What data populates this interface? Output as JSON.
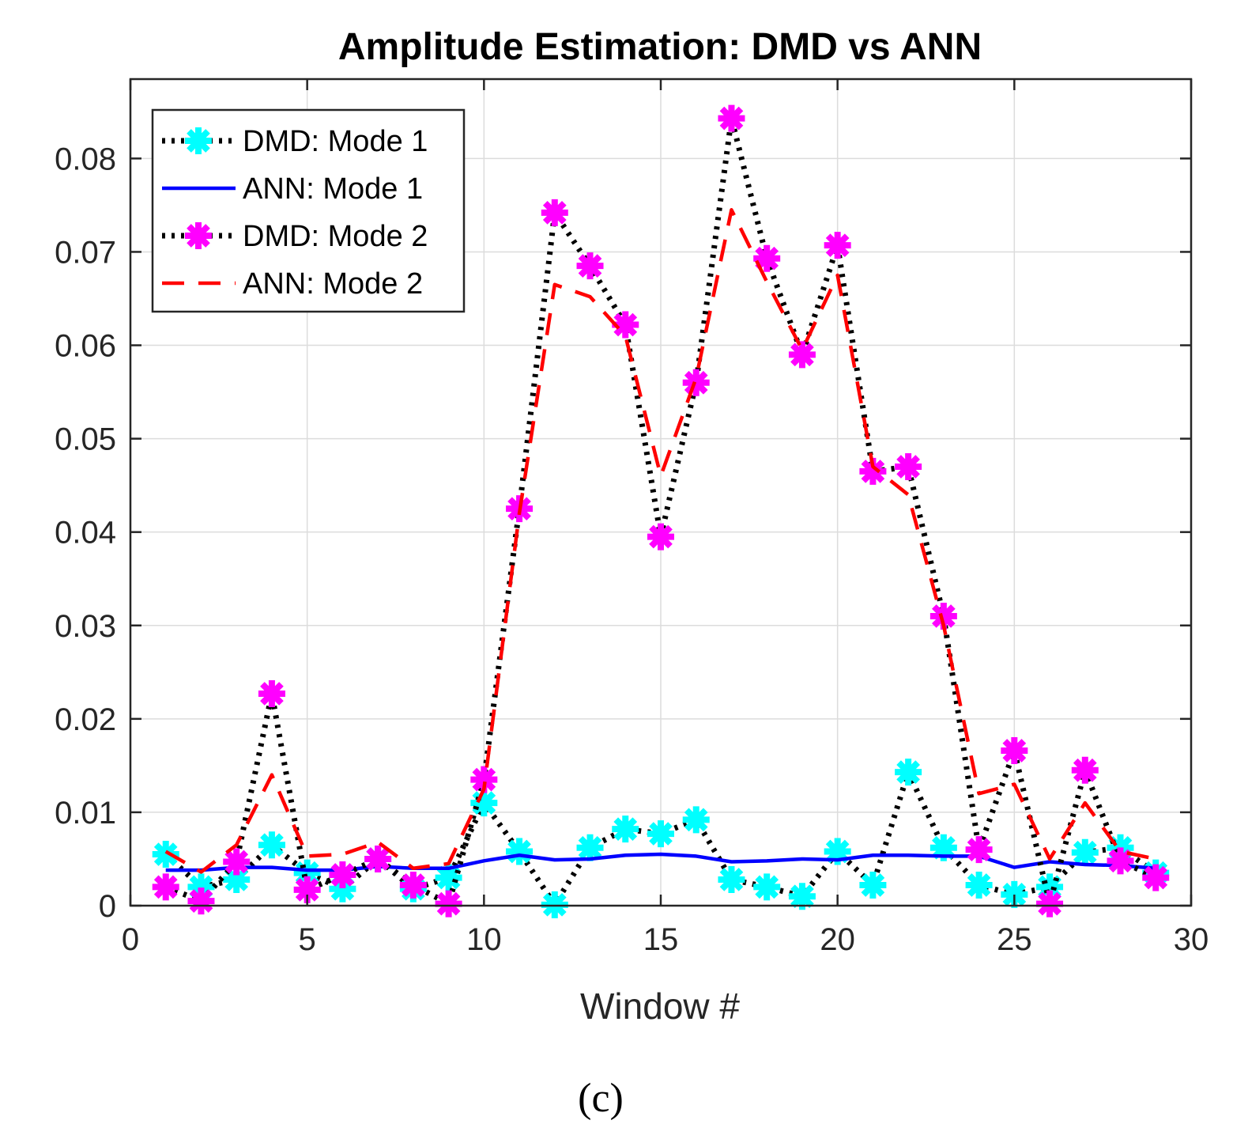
{
  "chart_data": {
    "type": "line",
    "title": "Amplitude Estimation: DMD vs ANN",
    "xlabel": "Window #",
    "ylabel": "",
    "caption": "(c)",
    "xlim": [
      0,
      30
    ],
    "ylim": [
      0,
      0.0885
    ],
    "xticks": [
      0,
      5,
      10,
      15,
      20,
      25,
      30
    ],
    "xtick_labels": [
      "0",
      "5",
      "10",
      "15",
      "20",
      "25",
      "30"
    ],
    "yticks": [
      0,
      0.01,
      0.02,
      0.03,
      0.04,
      0.05,
      0.06,
      0.07,
      0.08
    ],
    "ytick_labels": [
      "0",
      "0.01",
      "0.02",
      "0.03",
      "0.04",
      "0.05",
      "0.06",
      "0.07",
      "0.08"
    ],
    "grid": true,
    "legend_position": "top-left",
    "x": [
      1,
      2,
      3,
      4,
      5,
      6,
      7,
      8,
      9,
      10,
      11,
      12,
      13,
      14,
      15,
      16,
      17,
      18,
      19,
      20,
      21,
      22,
      23,
      24,
      25,
      26,
      27,
      28,
      29
    ],
    "series": [
      {
        "name": "DMD: Mode 1",
        "line_color": "#000000",
        "marker_color": "#00FFFF",
        "style": "dotted",
        "values": [
          0.0055,
          0.002,
          0.0028,
          0.0065,
          0.0035,
          0.0018,
          0.005,
          0.0018,
          0.003,
          0.011,
          0.0058,
          0.0001,
          0.0062,
          0.0082,
          0.0077,
          0.0092,
          0.0028,
          0.002,
          0.001,
          0.0058,
          0.0022,
          0.0143,
          0.0062,
          0.0022,
          0.0012,
          0.002,
          0.0057,
          0.0062,
          0.0035
        ]
      },
      {
        "name": "ANN: Mode 1",
        "line_color": "#0000FF",
        "style": "solid",
        "values": [
          0.0038,
          0.0038,
          0.0041,
          0.0041,
          0.0038,
          0.0038,
          0.0042,
          0.004,
          0.004,
          0.0048,
          0.0054,
          0.0049,
          0.005,
          0.0054,
          0.0055,
          0.0053,
          0.0047,
          0.0048,
          0.005,
          0.0049,
          0.0054,
          0.0054,
          0.0053,
          0.0053,
          0.0041,
          0.0047,
          0.0044,
          0.0043,
          0.004
        ]
      },
      {
        "name": "DMD: Mode 2",
        "line_color": "#000000",
        "marker_color": "#FF00FF",
        "style": "dotted",
        "values": [
          0.002,
          0.0005,
          0.0047,
          0.0227,
          0.0017,
          0.0033,
          0.005,
          0.0022,
          0.0002,
          0.0135,
          0.0425,
          0.0742,
          0.0685,
          0.0622,
          0.0395,
          0.056,
          0.0843,
          0.0693,
          0.059,
          0.0707,
          0.0465,
          0.047,
          0.031,
          0.006,
          0.0166,
          0.0002,
          0.0145,
          0.0048,
          0.003
        ]
      },
      {
        "name": "ANN: Mode 2",
        "line_color": "#FF0000",
        "style": "dashed",
        "values": [
          0.0058,
          0.0036,
          0.0065,
          0.014,
          0.0053,
          0.0055,
          0.0068,
          0.004,
          0.0045,
          0.0125,
          0.042,
          0.0665,
          0.0652,
          0.061,
          0.046,
          0.0565,
          0.0745,
          0.0668,
          0.0595,
          0.0675,
          0.047,
          0.044,
          0.03,
          0.012,
          0.013,
          0.005,
          0.011,
          0.0058,
          0.005
        ]
      }
    ]
  }
}
